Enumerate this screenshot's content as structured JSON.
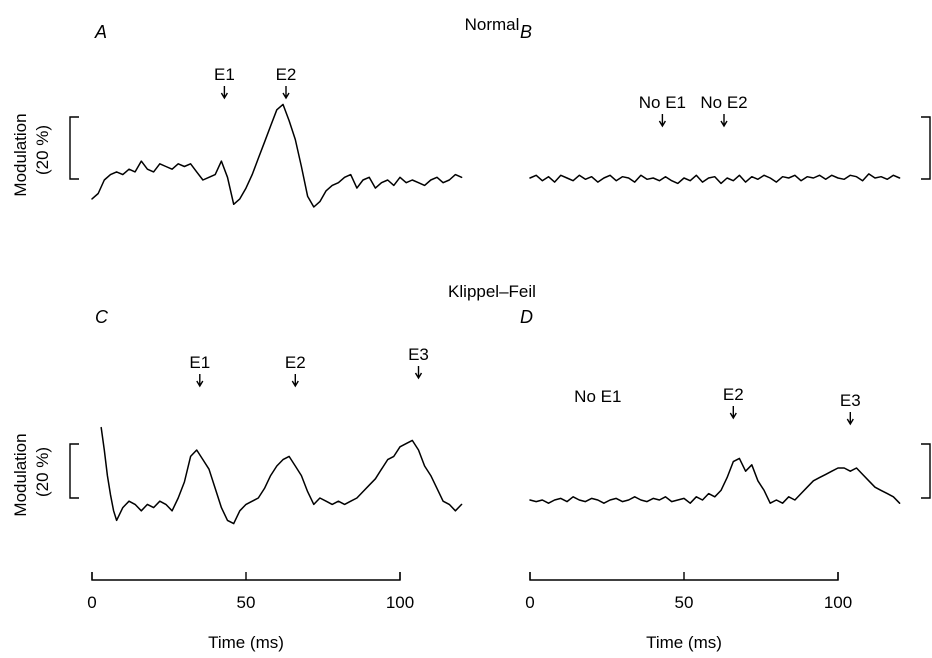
{
  "group_titles": [
    "Normal",
    "Klippel–Feil"
  ],
  "chart_data": [
    {
      "type": "line",
      "panel": "A",
      "group": "Normal",
      "xlim": [
        0,
        120
      ],
      "ylabel": "Modulation",
      "scale_bar": "(20 %)",
      "x": [
        0,
        2,
        4,
        6,
        8,
        10,
        12,
        14,
        16,
        18,
        20,
        22,
        24,
        26,
        28,
        30,
        32,
        34,
        36,
        38,
        40,
        42,
        44,
        46,
        48,
        50,
        52,
        54,
        56,
        58,
        60,
        62,
        64,
        66,
        68,
        70,
        72,
        74,
        76,
        78,
        80,
        82,
        84,
        86,
        88,
        90,
        92,
        94,
        96,
        98,
        100,
        102,
        104,
        106,
        108,
        110,
        112,
        114,
        116,
        118,
        120
      ],
      "values": [
        -14,
        -10,
        0,
        4,
        6,
        4,
        8,
        6,
        14,
        8,
        6,
        12,
        10,
        8,
        12,
        10,
        12,
        6,
        0,
        2,
        4,
        14,
        2,
        -18,
        -14,
        -6,
        4,
        16,
        28,
        40,
        52,
        56,
        44,
        30,
        10,
        -12,
        -20,
        -16,
        -8,
        -4,
        -2,
        2,
        4,
        -6,
        0,
        2,
        -6,
        -2,
        0,
        -4,
        2,
        -2,
        0,
        -2,
        -4,
        0,
        2,
        -2,
        0,
        4,
        2
      ],
      "annotations": [
        {
          "label": "E1",
          "x": 43
        },
        {
          "label": "E2",
          "x": 63
        }
      ],
      "series": [
        {
          "values_ref": "values"
        }
      ]
    },
    {
      "type": "line",
      "panel": "B",
      "group": "Normal",
      "xlim": [
        0,
        120
      ],
      "scale_bar": "",
      "x": [
        0,
        2,
        4,
        6,
        8,
        10,
        12,
        14,
        16,
        18,
        20,
        22,
        24,
        26,
        28,
        30,
        32,
        34,
        36,
        38,
        40,
        42,
        44,
        46,
        48,
        50,
        52,
        54,
        56,
        58,
        60,
        62,
        64,
        66,
        68,
        70,
        72,
        74,
        76,
        78,
        80,
        82,
        84,
        86,
        88,
        90,
        92,
        94,
        96,
        98,
        100,
        102,
        104,
        106,
        108,
        110,
        112,
        114,
        116,
        118,
        120
      ],
      "values": [
        0,
        2,
        -2,
        1,
        -3,
        2,
        0,
        -2,
        2,
        -1,
        1,
        -3,
        0,
        2,
        -2,
        1,
        0,
        -3,
        2,
        -1,
        0,
        -2,
        1,
        -2,
        -4,
        0,
        -2,
        2,
        -3,
        0,
        1,
        -4,
        0,
        -2,
        2,
        -3,
        1,
        -1,
        2,
        0,
        -3,
        1,
        0,
        2,
        -2,
        1,
        0,
        2,
        -1,
        2,
        0,
        -1,
        2,
        1,
        -2,
        3,
        0,
        1,
        -1,
        2,
        0
      ],
      "annotations": [
        {
          "label": "No E1",
          "x": 43
        },
        {
          "label": "No E2",
          "x": 63
        }
      ]
    },
    {
      "type": "line",
      "panel": "C",
      "group": "Klippel–Feil",
      "xlim": [
        0,
        120
      ],
      "ylabel": "Modulation",
      "scale_bar": "(20 %)",
      "x": [
        3,
        4,
        5,
        6,
        7,
        8,
        10,
        12,
        14,
        16,
        18,
        20,
        22,
        24,
        26,
        28,
        30,
        32,
        34,
        36,
        38,
        40,
        42,
        44,
        46,
        48,
        50,
        52,
        54,
        56,
        58,
        60,
        62,
        64,
        66,
        68,
        70,
        72,
        74,
        76,
        78,
        80,
        82,
        84,
        86,
        88,
        90,
        92,
        94,
        96,
        98,
        100,
        102,
        104,
        106,
        108,
        110,
        112,
        114,
        116,
        118,
        120
      ],
      "values": [
        44,
        30,
        14,
        2,
        -8,
        -14,
        -6,
        -2,
        -4,
        -8,
        -4,
        -6,
        -2,
        -4,
        -8,
        0,
        10,
        26,
        30,
        24,
        18,
        6,
        -6,
        -14,
        -16,
        -8,
        -4,
        -2,
        0,
        6,
        14,
        20,
        24,
        26,
        20,
        14,
        4,
        -4,
        0,
        -2,
        -4,
        -2,
        -4,
        -2,
        0,
        4,
        8,
        12,
        18,
        24,
        26,
        32,
        34,
        36,
        30,
        20,
        14,
        6,
        -2,
        -4,
        -8,
        -4
      ],
      "annotations": [
        {
          "label": "E1",
          "x": 35
        },
        {
          "label": "E2",
          "x": 66
        },
        {
          "label": "E3",
          "x": 106
        }
      ]
    },
    {
      "type": "line",
      "panel": "D",
      "group": "Klippel–Feil",
      "xlim": [
        0,
        120
      ],
      "scale_bar": "",
      "x": [
        0,
        2,
        4,
        6,
        8,
        10,
        12,
        14,
        16,
        18,
        20,
        22,
        24,
        26,
        28,
        30,
        32,
        34,
        36,
        38,
        40,
        42,
        44,
        46,
        48,
        50,
        52,
        54,
        56,
        58,
        60,
        62,
        64,
        66,
        68,
        70,
        72,
        74,
        76,
        78,
        80,
        82,
        84,
        86,
        88,
        90,
        92,
        94,
        96,
        98,
        100,
        102,
        104,
        106,
        108,
        110,
        112,
        114,
        116,
        118,
        120
      ],
      "values": [
        0,
        -1,
        0,
        -2,
        0,
        1,
        -1,
        2,
        0,
        -1,
        1,
        0,
        -2,
        0,
        1,
        -1,
        0,
        2,
        0,
        -1,
        1,
        0,
        2,
        -1,
        0,
        1,
        -2,
        2,
        0,
        4,
        2,
        6,
        14,
        24,
        26,
        18,
        22,
        12,
        6,
        -2,
        0,
        -2,
        2,
        0,
        4,
        8,
        12,
        14,
        16,
        18,
        20,
        20,
        18,
        20,
        16,
        12,
        8,
        6,
        4,
        2,
        -2
      ],
      "annotations": [
        {
          "label": "No E1",
          "x": 22,
          "no_arrow": true
        },
        {
          "label": "E2",
          "x": 66
        },
        {
          "label": "E3",
          "x": 104
        }
      ],
      "scale_bar_right": true
    }
  ],
  "time_axes": [
    {
      "ticks": [
        0,
        50,
        100
      ],
      "xlabel": "Time (ms)"
    },
    {
      "ticks": [
        0,
        50,
        100
      ],
      "xlabel": "Time (ms)"
    }
  ]
}
